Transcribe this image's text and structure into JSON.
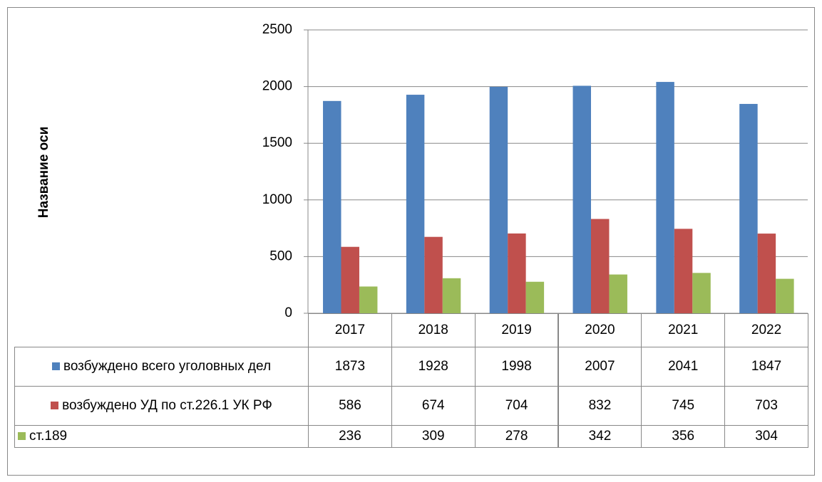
{
  "chart_data": {
    "type": "bar",
    "y_axis_label": "Название оси",
    "categories": [
      "2017",
      "2018",
      "2019",
      "2020",
      "2021",
      "2022"
    ],
    "series": [
      {
        "name": "возбуждено всего уголовных дел",
        "color": "#4f81bd",
        "values": [
          1873,
          1928,
          1998,
          2007,
          2041,
          1847
        ]
      },
      {
        "name": "возбуждено УД по ст.226.1 УК РФ",
        "color": "#c0504d",
        "values": [
          586,
          674,
          704,
          832,
          745,
          703
        ]
      },
      {
        "name": "ст.189",
        "color": "#9bbb59",
        "values": [
          236,
          309,
          278,
          342,
          356,
          304
        ]
      }
    ],
    "ylim": [
      0,
      2500
    ],
    "yticks": [
      0,
      500,
      1000,
      1500,
      2000,
      2500
    ],
    "grid": true,
    "data_table": true
  }
}
